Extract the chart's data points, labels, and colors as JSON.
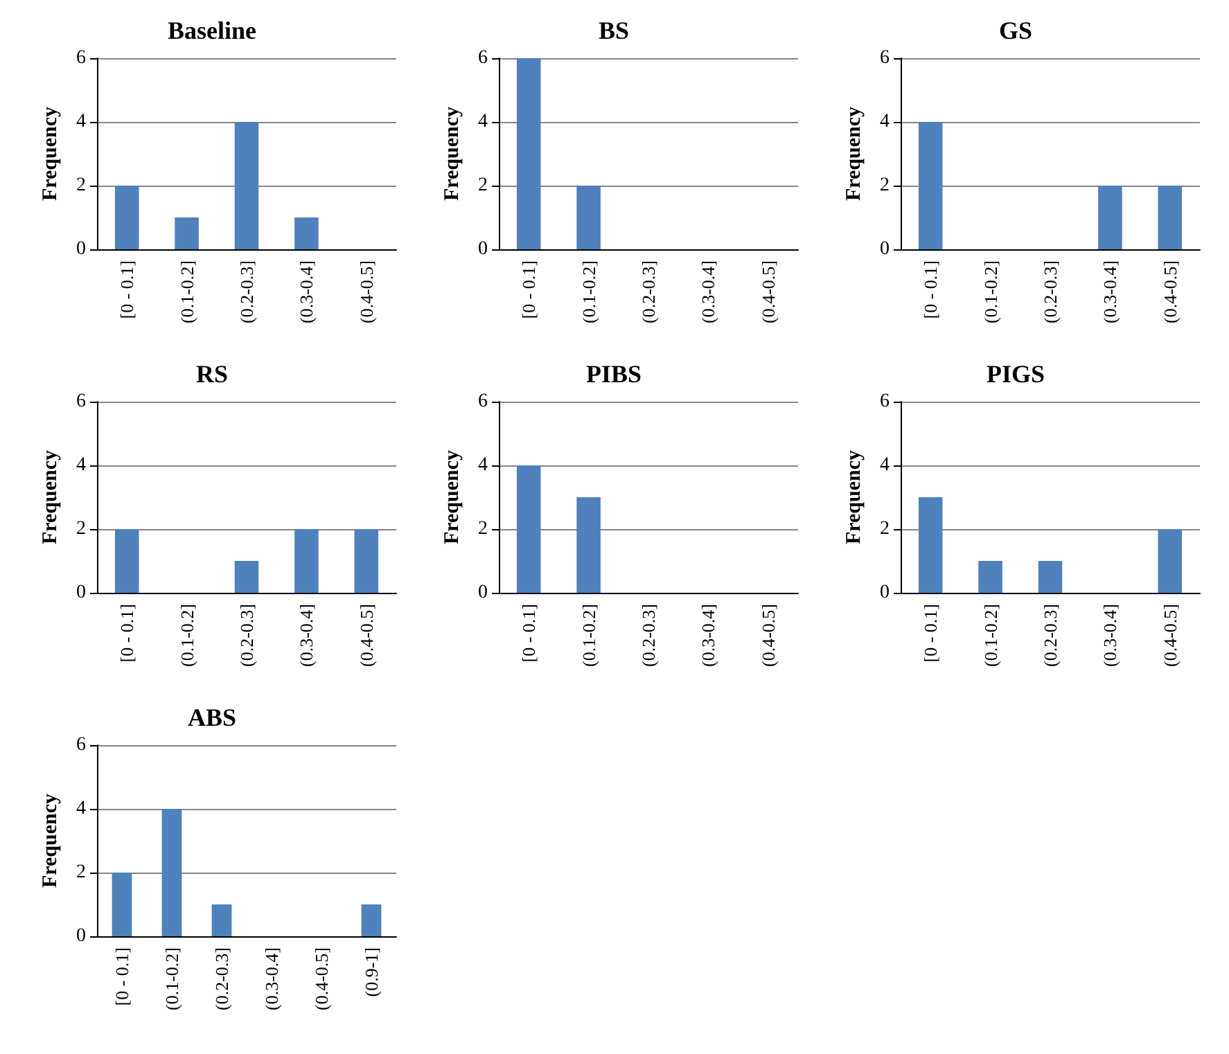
{
  "chart_data": [
    {
      "type": "bar",
      "title": "Baseline",
      "ylabel": "Frequency",
      "categories": [
        "[0 - 0.1]",
        "(0.1-0.2]",
        "(0.2-0.3]",
        "(0.3-0.4]",
        "(0.4-0.5]"
      ],
      "series": [
        {
          "color": "#4f81bd",
          "values": [
            2,
            1,
            4,
            1,
            0
          ]
        }
      ],
      "ylim": [
        0,
        6
      ],
      "yticks": [
        0,
        2,
        4,
        6
      ],
      "grid": "y"
    },
    {
      "type": "bar",
      "title": "BS",
      "ylabel": "Frequency",
      "categories": [
        "[0 - 0.1]",
        "(0.1-0.2]",
        "(0.2-0.3]",
        "(0.3-0.4]",
        "(0.4-0.5]"
      ],
      "series": [
        {
          "color": "#4f81bd",
          "values": [
            6,
            2,
            0,
            0,
            0
          ]
        }
      ],
      "ylim": [
        0,
        6
      ],
      "yticks": [
        0,
        2,
        4,
        6
      ],
      "grid": "y"
    },
    {
      "type": "bar",
      "title": "GS",
      "ylabel": "Frequency",
      "categories": [
        "[0 - 0.1]",
        "(0.1-0.2]",
        "(0.2-0.3]",
        "(0.3-0.4]",
        "(0.4-0.5]"
      ],
      "series": [
        {
          "color": "#4f81bd",
          "values": [
            4,
            0,
            0,
            2,
            2
          ]
        }
      ],
      "ylim": [
        0,
        6
      ],
      "yticks": [
        0,
        2,
        4,
        6
      ],
      "grid": "y"
    },
    {
      "type": "bar",
      "title": "RS",
      "ylabel": "Frequency",
      "categories": [
        "[0 - 0.1]",
        "(0.1-0.2]",
        "(0.2-0.3]",
        "(0.3-0.4]",
        "(0.4-0.5]"
      ],
      "series": [
        {
          "color": "#4f81bd",
          "values": [
            2,
            0,
            1,
            2,
            2
          ]
        }
      ],
      "ylim": [
        0,
        6
      ],
      "yticks": [
        0,
        2,
        4,
        6
      ],
      "grid": "y"
    },
    {
      "type": "bar",
      "title": "PIBS",
      "ylabel": "Frequency",
      "categories": [
        "[0 - 0.1]",
        "(0.1-0.2]",
        "(0.2-0.3]",
        "(0.3-0.4]",
        "(0.4-0.5]"
      ],
      "series": [
        {
          "color": "#4f81bd",
          "values": [
            4,
            3,
            0,
            0,
            0
          ]
        }
      ],
      "ylim": [
        0,
        6
      ],
      "yticks": [
        0,
        2,
        4,
        6
      ],
      "grid": "y"
    },
    {
      "type": "bar",
      "title": "PIGS",
      "ylabel": "Frequency",
      "categories": [
        "[0 - 0.1]",
        "(0.1-0.2]",
        "(0.2-0.3]",
        "(0.3-0.4]",
        "(0.4-0.5]"
      ],
      "series": [
        {
          "color": "#4f81bd",
          "values": [
            3,
            1,
            1,
            0,
            2
          ]
        }
      ],
      "ylim": [
        0,
        6
      ],
      "yticks": [
        0,
        2,
        4,
        6
      ],
      "grid": "y"
    },
    {
      "type": "bar",
      "title": "ABS",
      "ylabel": "Frequency",
      "categories": [
        "[0 - 0.1]",
        "(0.1-0.2]",
        "(0.2-0.3]",
        "(0.3-0.4]",
        "(0.4-0.5]",
        "(0.9-1]"
      ],
      "series": [
        {
          "color": "#4f81bd",
          "values": [
            2,
            4,
            1,
            0,
            0,
            1
          ]
        }
      ],
      "ylim": [
        0,
        6
      ],
      "yticks": [
        0,
        2,
        4,
        6
      ],
      "grid": "y"
    }
  ]
}
